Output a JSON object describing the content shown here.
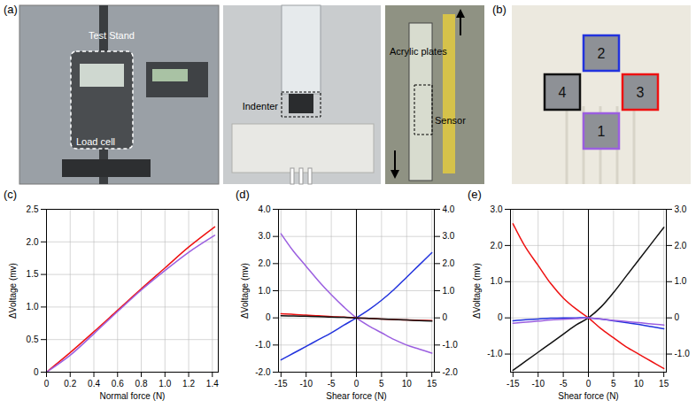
{
  "figure": {
    "panel_a": {
      "label": "(a)",
      "photos": [
        {
          "labels": [
            "Test Stand",
            "Load cell"
          ]
        },
        {
          "labels": [
            "Indenter"
          ]
        },
        {
          "labels": [
            "Acrylic plates",
            "Sensor"
          ]
        }
      ]
    },
    "panel_b": {
      "label": "(b)",
      "sensors": [
        {
          "number": "2",
          "color": "#2233dd",
          "position": "top"
        },
        {
          "number": "4",
          "color": "#111111",
          "position": "left"
        },
        {
          "number": "3",
          "color": "#ee1111",
          "position": "right"
        },
        {
          "number": "1",
          "color": "#9b5fe0",
          "position": "bottom"
        }
      ]
    }
  },
  "chart_data": [
    {
      "panel": "(c)",
      "type": "line",
      "grid": true,
      "x_label": "Normal force (N)",
      "y_label": "ΔVoltage (mv)",
      "x": [
        0,
        0.2,
        0.4,
        0.6,
        0.8,
        1.0,
        1.2,
        1.42
      ],
      "xlim": [
        0,
        1.45
      ],
      "xticks": [
        0,
        0.2,
        0.4,
        0.6,
        0.8,
        {
          "value": 1,
          "label": "1.0"
        },
        1.2,
        1.4
      ],
      "ylim": [
        0,
        2.5
      ],
      "yticks": [
        0,
        0.5,
        {
          "value": 1,
          "label": "1.0"
        },
        1.5,
        {
          "value": 2,
          "label": "2.0"
        },
        2.5
      ],
      "series": [
        {
          "name": "3",
          "color": "#ee1111",
          "values": [
            0,
            0.3,
            0.62,
            0.95,
            1.28,
            1.6,
            1.92,
            2.23
          ]
        },
        {
          "name": "1",
          "color": "#9b5fe0",
          "values": [
            0,
            0.26,
            0.59,
            0.93,
            1.26,
            1.56,
            1.84,
            2.1
          ]
        }
      ]
    },
    {
      "panel": "(d)",
      "type": "line",
      "grid": true,
      "x_label": "Shear force (N)",
      "y_label": "ΔVoltage (mv)",
      "x": [
        -15,
        -12.5,
        -10,
        -7.5,
        -5,
        -2.5,
        0,
        2.5,
        5,
        7.5,
        10,
        12.5,
        15
      ],
      "xlim": [
        -15.5,
        15.5
      ],
      "xticks": [
        -15,
        -10,
        -5,
        0,
        5,
        10,
        15
      ],
      "ylim": [
        -2,
        4
      ],
      "yticks": [
        {
          "value": -2,
          "label": "-2.0"
        },
        {
          "value": -1,
          "label": "-1.0"
        },
        0,
        {
          "value": 1,
          "label": "1.0"
        },
        {
          "value": 2,
          "label": "2.0"
        },
        {
          "value": 3,
          "label": "3.0"
        },
        {
          "value": 4,
          "label": "4.0"
        }
      ],
      "y2lim": [
        -2,
        4
      ],
      "y2ticks": [
        {
          "value": -2,
          "label": "-2.0"
        },
        {
          "value": -1,
          "label": "-1.0"
        },
        0,
        {
          "value": 1,
          "label": "1.0"
        },
        {
          "value": 2,
          "label": "2.0"
        },
        {
          "value": 3,
          "label": "3.0"
        },
        {
          "value": 4,
          "label": "4.0"
        }
      ],
      "series": [
        {
          "name": "1",
          "color": "#9b5fe0",
          "values": [
            3.1,
            2.45,
            1.9,
            1.35,
            0.85,
            0.4,
            0,
            -0.3,
            -0.55,
            -0.8,
            -1.0,
            -1.15,
            -1.3
          ]
        },
        {
          "name": "2",
          "color": "#2233dd",
          "values": [
            -1.55,
            -1.3,
            -1.05,
            -0.8,
            -0.55,
            -0.27,
            0,
            0.3,
            0.65,
            1.05,
            1.5,
            1.95,
            2.4
          ]
        },
        {
          "name": "3",
          "color": "#ee1111",
          "values": [
            0.15,
            0.13,
            0.1,
            0.08,
            0.05,
            0.03,
            0,
            -0.02,
            -0.04,
            -0.06,
            -0.08,
            -0.09,
            -0.1
          ]
        },
        {
          "name": "4",
          "color": "#111111",
          "values": [
            0.08,
            0.07,
            0.06,
            0.05,
            0.03,
            0.02,
            0,
            -0.02,
            -0.04,
            -0.06,
            -0.08,
            -0.1,
            -0.12
          ]
        }
      ]
    },
    {
      "panel": "(e)",
      "type": "line",
      "grid": true,
      "x_label": "Shear force (N)",
      "y_label": "ΔVoltage (mv)",
      "x": [
        -15,
        -12.5,
        -10,
        -7.5,
        -5,
        -2.5,
        0,
        2.5,
        5,
        7.5,
        10,
        12.5,
        15
      ],
      "xlim": [
        -15.5,
        15.5
      ],
      "xticks": [
        -15,
        -10,
        -5,
        0,
        5,
        10,
        15
      ],
      "ylim": [
        -1.5,
        3
      ],
      "yticks": [
        {
          "value": -1,
          "label": "-1.0"
        },
        0,
        {
          "value": 1,
          "label": "1.0"
        },
        {
          "value": 2,
          "label": "2.0"
        },
        {
          "value": 3,
          "label": "3.0"
        }
      ],
      "y2lim": [
        -1.5,
        3
      ],
      "y2ticks": [
        {
          "value": -1,
          "label": "-1.0"
        },
        0,
        {
          "value": 1,
          "label": "1.0"
        },
        {
          "value": 2,
          "label": "2.0"
        },
        {
          "value": 3,
          "label": "3.0"
        }
      ],
      "series": [
        {
          "name": "3",
          "color": "#ee1111",
          "values": [
            2.6,
            1.95,
            1.45,
            0.95,
            0.55,
            0.25,
            0,
            -0.3,
            -0.55,
            -0.8,
            -1.0,
            -1.2,
            -1.4
          ]
        },
        {
          "name": "4",
          "color": "#111111",
          "values": [
            -1.45,
            -1.2,
            -0.95,
            -0.7,
            -0.45,
            -0.2,
            0,
            0.3,
            0.7,
            1.15,
            1.6,
            2.05,
            2.5
          ]
        },
        {
          "name": "2",
          "color": "#2233dd",
          "values": [
            -0.08,
            -0.05,
            -0.03,
            -0.01,
            0,
            0,
            0,
            -0.03,
            -0.08,
            -0.13,
            -0.18,
            -0.24,
            -0.3
          ]
        },
        {
          "name": "1",
          "color": "#9b5fe0",
          "values": [
            -0.15,
            -0.12,
            -0.09,
            -0.06,
            -0.04,
            -0.02,
            0,
            -0.03,
            -0.07,
            -0.1,
            -0.13,
            -0.17,
            -0.2
          ]
        }
      ]
    }
  ]
}
